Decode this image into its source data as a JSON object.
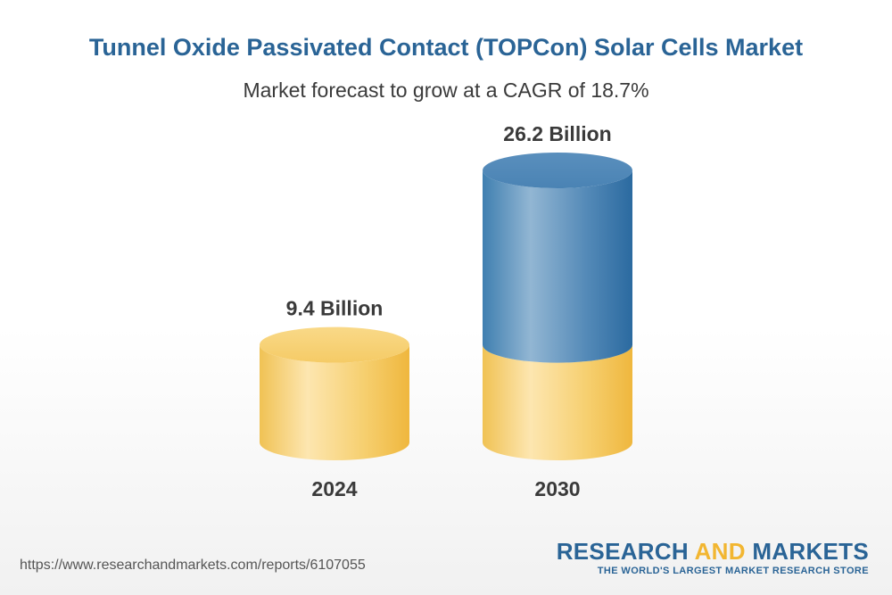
{
  "header": {
    "title": "Tunnel Oxide Passivated Contact (TOPCon) Solar Cells Market",
    "subtitle": "Market forecast to grow at a CAGR of 18.7%"
  },
  "chart_data": {
    "type": "bar",
    "style": "3d-cylinder",
    "categories": [
      "2024",
      "2030"
    ],
    "values": [
      9.4,
      26.2
    ],
    "value_labels": [
      "9.4 Billion",
      "26.2 Billion"
    ],
    "base_value": 9.4,
    "title": "Tunnel Oxide Passivated Contact (TOPCon) Solar Cells Market",
    "subtitle": "Market forecast to grow at a CAGR of 18.7%",
    "colors": {
      "base": "#f2c45a",
      "growth": "#2f6fa3"
    }
  },
  "footer": {
    "url": "https://www.researchandmarkets.com/reports/6107055",
    "logo_word1": "RESEARCH",
    "logo_word2": "AND",
    "logo_word3": "MARKETS",
    "logo_tagline": "THE WORLD'S LARGEST MARKET RESEARCH STORE"
  }
}
